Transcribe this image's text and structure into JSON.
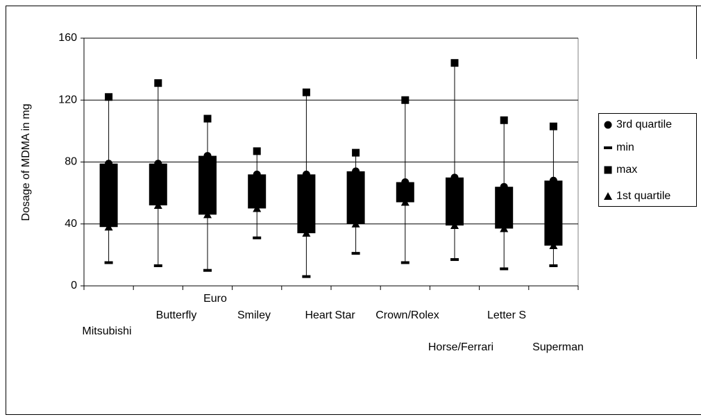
{
  "chart_data": {
    "type": "box",
    "y_label": "Dosage of MDMA in mg",
    "categories": [
      "Mitsubishi",
      "Butterfly",
      "Euro",
      "Smiley",
      "Heart",
      "Star",
      "Crown/Rolex",
      "Horse/Ferrari",
      "Letter S",
      "Superman"
    ],
    "series": [
      {
        "name": "3rd quartile",
        "color": "#000000",
        "marker": "circle",
        "values": [
          79,
          79,
          84,
          72,
          72,
          74,
          67,
          70,
          64,
          68
        ]
      },
      {
        "name": "min",
        "color": "#000000",
        "marker": "dash",
        "values": [
          15,
          13,
          10,
          31,
          6,
          21,
          15,
          17,
          11,
          13
        ]
      },
      {
        "name": "max",
        "color": "#000000",
        "marker": "square",
        "values": [
          122,
          131,
          108,
          87,
          125,
          86,
          120,
          144,
          107,
          103
        ]
      },
      {
        "name": "1st quartile",
        "color": "#000000",
        "marker": "triangle",
        "values": [
          38,
          52,
          46,
          50,
          34,
          40,
          54,
          39,
          37,
          26
        ]
      }
    ],
    "ylim": [
      0,
      160
    ],
    "yticks": [
      0,
      40,
      80,
      120,
      160
    ],
    "grid": true,
    "legend": "right"
  }
}
